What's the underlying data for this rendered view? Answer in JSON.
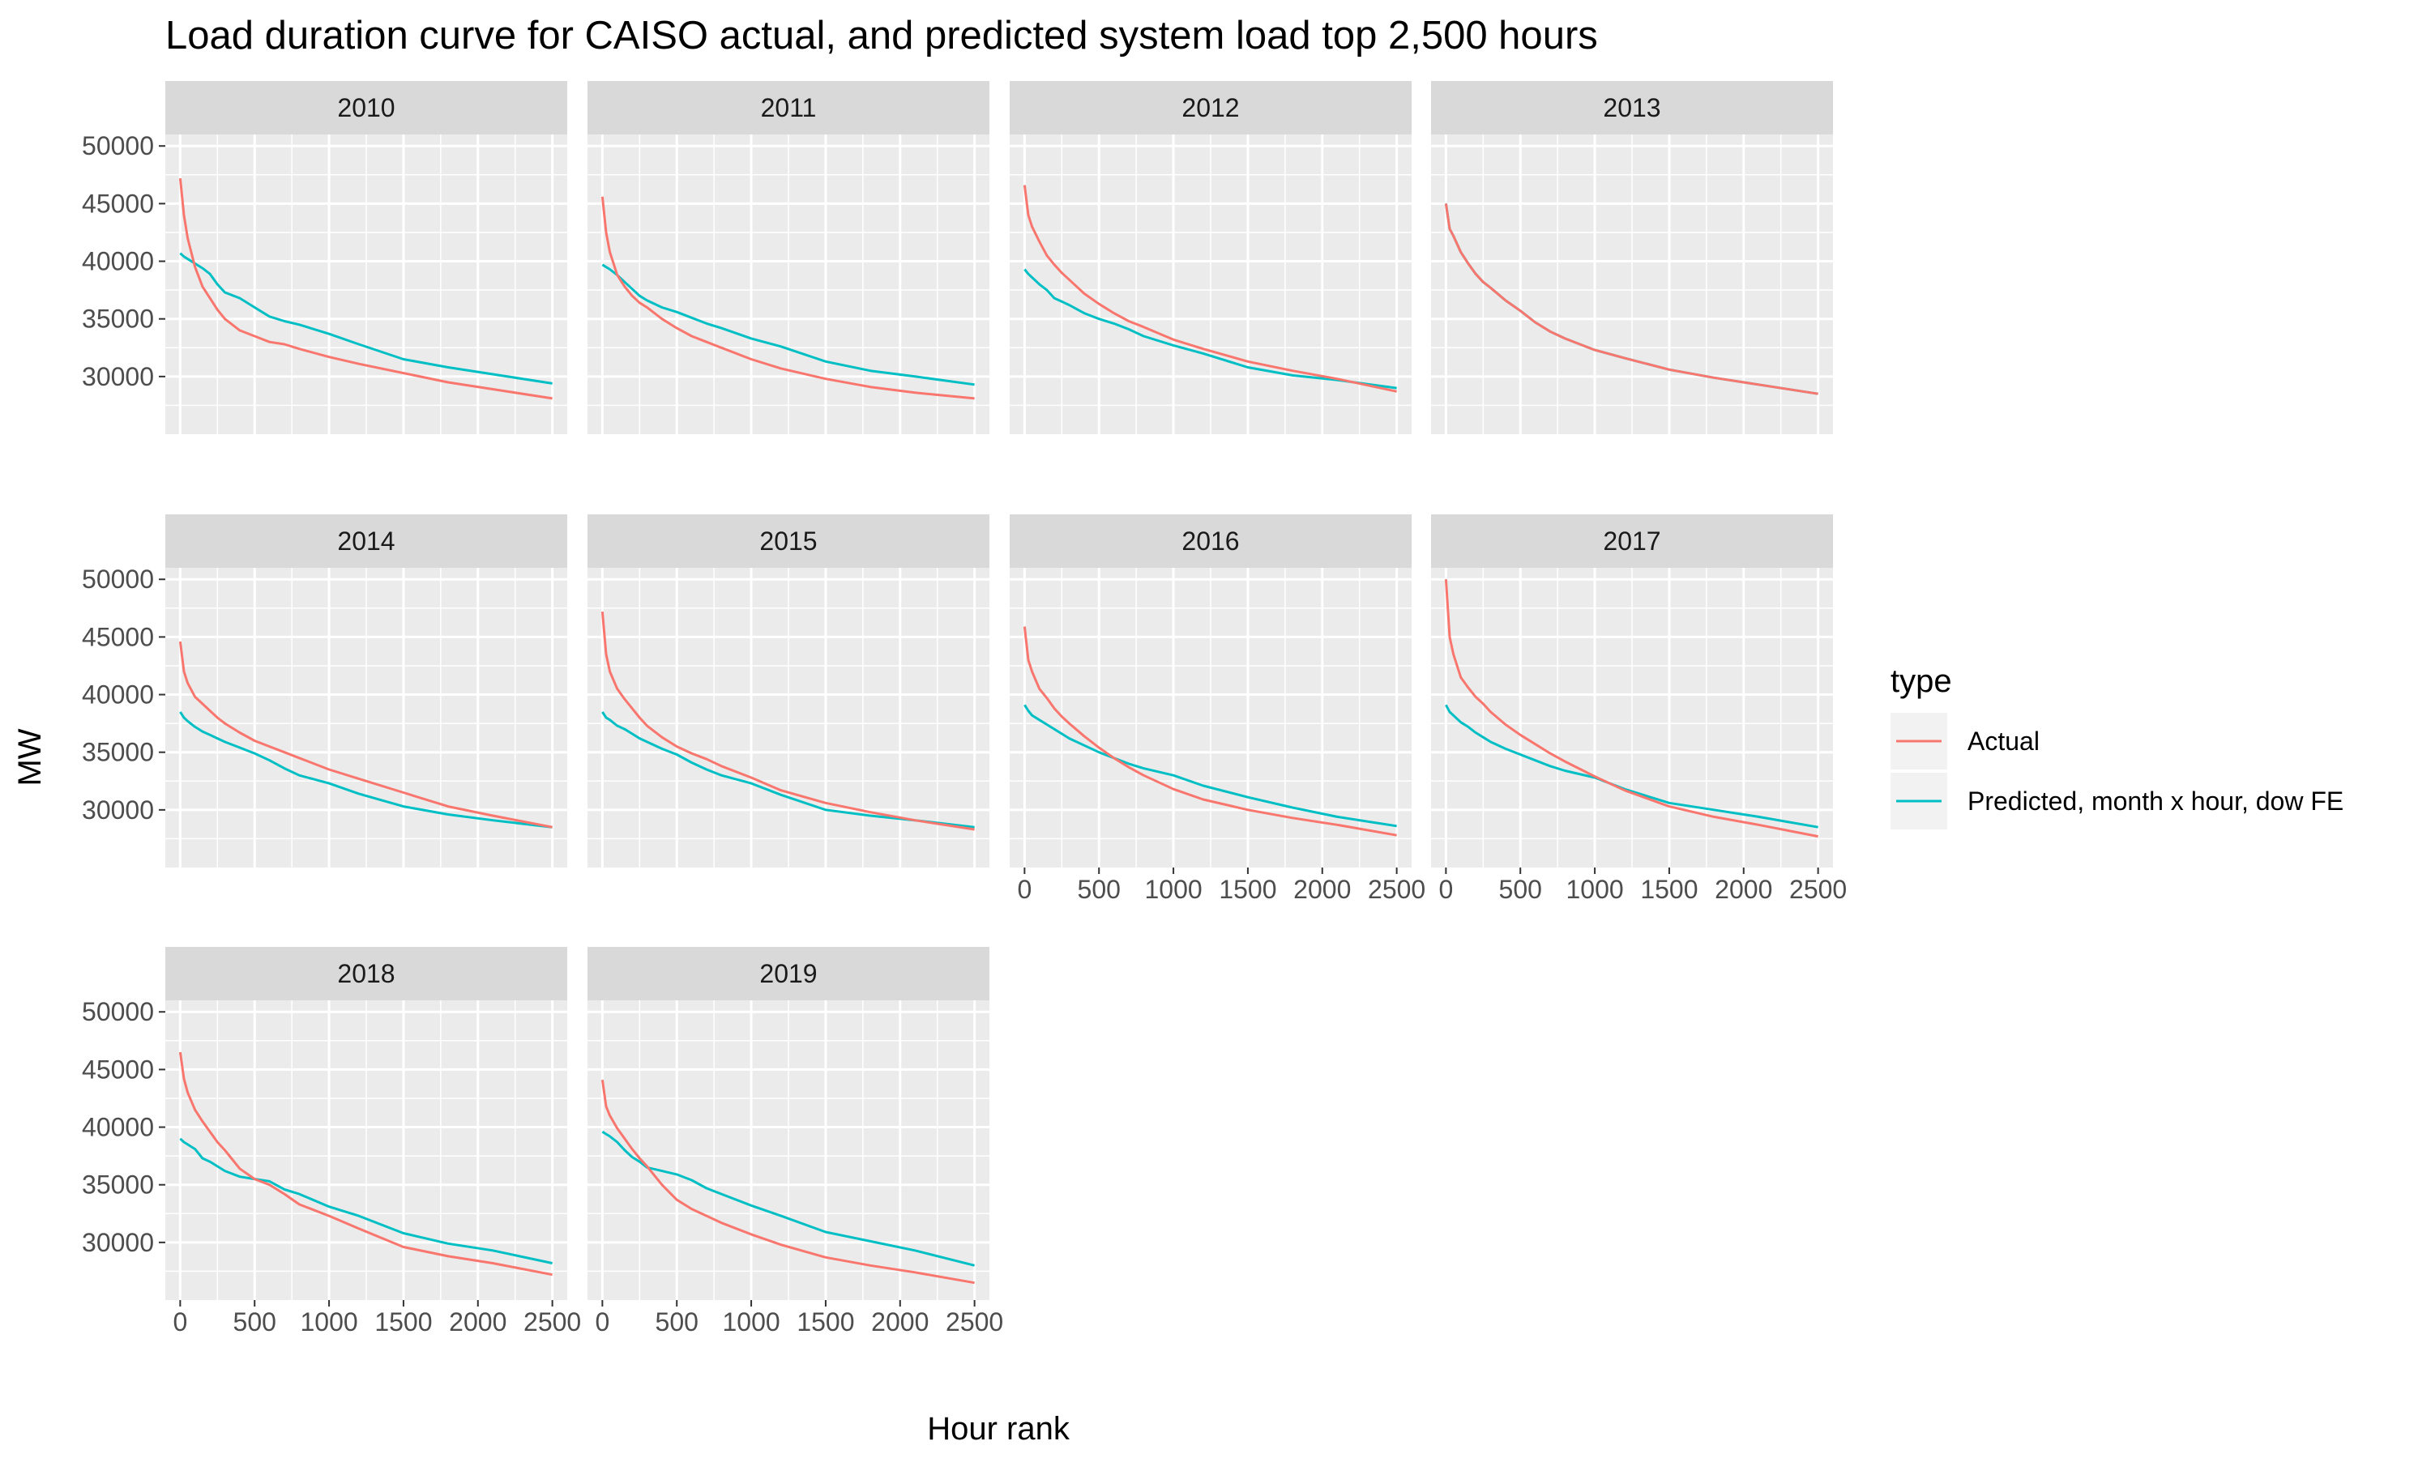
{
  "chart_data": {
    "type": "line",
    "title": "Load duration curve for CAISO actual, and predicted system load top 2,500 hours",
    "xlabel": "Hour rank",
    "ylabel": "MW",
    "xlim": [
      -100,
      2600
    ],
    "ylim": [
      25000,
      51000
    ],
    "xticks": [
      0,
      500,
      1000,
      1500,
      2000,
      2500
    ],
    "yticks": [
      30000,
      35000,
      40000,
      45000,
      50000
    ],
    "grid": true,
    "facet_layout": {
      "rows": 3,
      "cols": 4
    },
    "legend": {
      "title": "type",
      "position": "right",
      "entries": [
        {
          "label": "Actual",
          "color": "#F8766D"
        },
        {
          "label": "Predicted, month x hour, dow FE",
          "color": "#00BFC4"
        }
      ]
    },
    "x": [
      0,
      25,
      50,
      100,
      150,
      200,
      250,
      300,
      400,
      500,
      600,
      700,
      800,
      1000,
      1200,
      1500,
      1800,
      2100,
      2500
    ],
    "panels": [
      {
        "label": "2010",
        "actual": [
          47200,
          44000,
          42000,
          39500,
          37800,
          36800,
          35800,
          35000,
          34000,
          33500,
          33000,
          32800,
          32400,
          31700,
          31100,
          30300,
          29500,
          28900,
          28100
        ],
        "predicted": [
          40700,
          40400,
          40200,
          39800,
          39400,
          38900,
          38000,
          37300,
          36800,
          36000,
          35200,
          34800,
          34500,
          33700,
          32800,
          31500,
          30800,
          30200,
          29400
        ]
      },
      {
        "label": "2011",
        "actual": [
          45600,
          42500,
          40800,
          38800,
          37800,
          37000,
          36400,
          36000,
          35000,
          34200,
          33500,
          33000,
          32500,
          31500,
          30700,
          29800,
          29100,
          28600,
          28100
        ],
        "predicted": [
          39700,
          39500,
          39300,
          38800,
          38200,
          37600,
          37000,
          36600,
          36000,
          35600,
          35100,
          34600,
          34200,
          33300,
          32600,
          31300,
          30500,
          30000,
          29300
        ]
      },
      {
        "label": "2012",
        "actual": [
          46600,
          44000,
          43000,
          41700,
          40500,
          39700,
          39000,
          38400,
          37200,
          36300,
          35500,
          34800,
          34300,
          33200,
          32400,
          31300,
          30500,
          29800,
          28700
        ],
        "predicted": [
          39300,
          38900,
          38600,
          38000,
          37500,
          36800,
          36500,
          36200,
          35500,
          35000,
          34600,
          34100,
          33500,
          32700,
          32000,
          30800,
          30100,
          29700,
          29000
        ]
      },
      {
        "label": "2013",
        "actual": [
          45000,
          42800,
          42200,
          40800,
          39800,
          38900,
          38200,
          37700,
          36600,
          35700,
          34700,
          33900,
          33300,
          32300,
          31600,
          30600,
          29900,
          29300,
          28500
        ]
      },
      {
        "label": "2014",
        "actual": [
          44600,
          42000,
          41000,
          39800,
          39200,
          38600,
          38000,
          37500,
          36700,
          36000,
          35500,
          35000,
          34500,
          33500,
          32700,
          31500,
          30300,
          29500,
          28500
        ],
        "predicted": [
          38500,
          38000,
          37700,
          37200,
          36800,
          36500,
          36200,
          35900,
          35400,
          34900,
          34300,
          33600,
          33000,
          32300,
          31400,
          30300,
          29600,
          29100,
          28500
        ]
      },
      {
        "label": "2015",
        "actual": [
          47200,
          43500,
          42000,
          40500,
          39600,
          38800,
          38000,
          37300,
          36300,
          35500,
          34900,
          34400,
          33800,
          32800,
          31700,
          30600,
          29800,
          29100,
          28300
        ],
        "predicted": [
          38500,
          38000,
          37800,
          37300,
          37000,
          36600,
          36200,
          35900,
          35300,
          34800,
          34100,
          33500,
          33000,
          32300,
          31300,
          30000,
          29500,
          29100,
          28500
        ]
      },
      {
        "label": "2016",
        "actual": [
          45900,
          43000,
          42000,
          40500,
          39700,
          38800,
          38100,
          37500,
          36400,
          35400,
          34500,
          33700,
          33000,
          31800,
          30900,
          30000,
          29300,
          28700,
          27800
        ],
        "predicted": [
          39100,
          38600,
          38200,
          37800,
          37400,
          37000,
          36600,
          36200,
          35600,
          35000,
          34500,
          34000,
          33600,
          33000,
          32100,
          31100,
          30200,
          29400,
          28600
        ]
      },
      {
        "label": "2017",
        "actual": [
          50000,
          45000,
          43500,
          41500,
          40600,
          39800,
          39200,
          38500,
          37400,
          36500,
          35700,
          34900,
          34200,
          32900,
          31700,
          30300,
          29400,
          28700,
          27700
        ],
        "predicted": [
          39100,
          38500,
          38200,
          37600,
          37200,
          36700,
          36300,
          35900,
          35300,
          34800,
          34300,
          33800,
          33400,
          32800,
          31800,
          30600,
          30000,
          29400,
          28500
        ]
      },
      {
        "label": "2018",
        "actual": [
          46500,
          44200,
          43000,
          41500,
          40500,
          39600,
          38700,
          38000,
          36400,
          35500,
          35000,
          34200,
          33300,
          32300,
          31200,
          29600,
          28800,
          28200,
          27200
        ],
        "predicted": [
          39000,
          38700,
          38500,
          38100,
          37300,
          37000,
          36600,
          36200,
          35700,
          35500,
          35300,
          34600,
          34200,
          33100,
          32300,
          30800,
          29900,
          29300,
          28200
        ]
      },
      {
        "label": "2019",
        "actual": [
          44100,
          41800,
          41000,
          39900,
          39000,
          38100,
          37300,
          36600,
          35000,
          33700,
          32900,
          32300,
          31700,
          30700,
          29800,
          28700,
          28000,
          27400,
          26500
        ],
        "predicted": [
          39600,
          39400,
          39200,
          38700,
          38000,
          37400,
          37000,
          36500,
          36200,
          35900,
          35400,
          34700,
          34200,
          33200,
          32300,
          30900,
          30100,
          29300,
          28000
        ]
      }
    ]
  }
}
